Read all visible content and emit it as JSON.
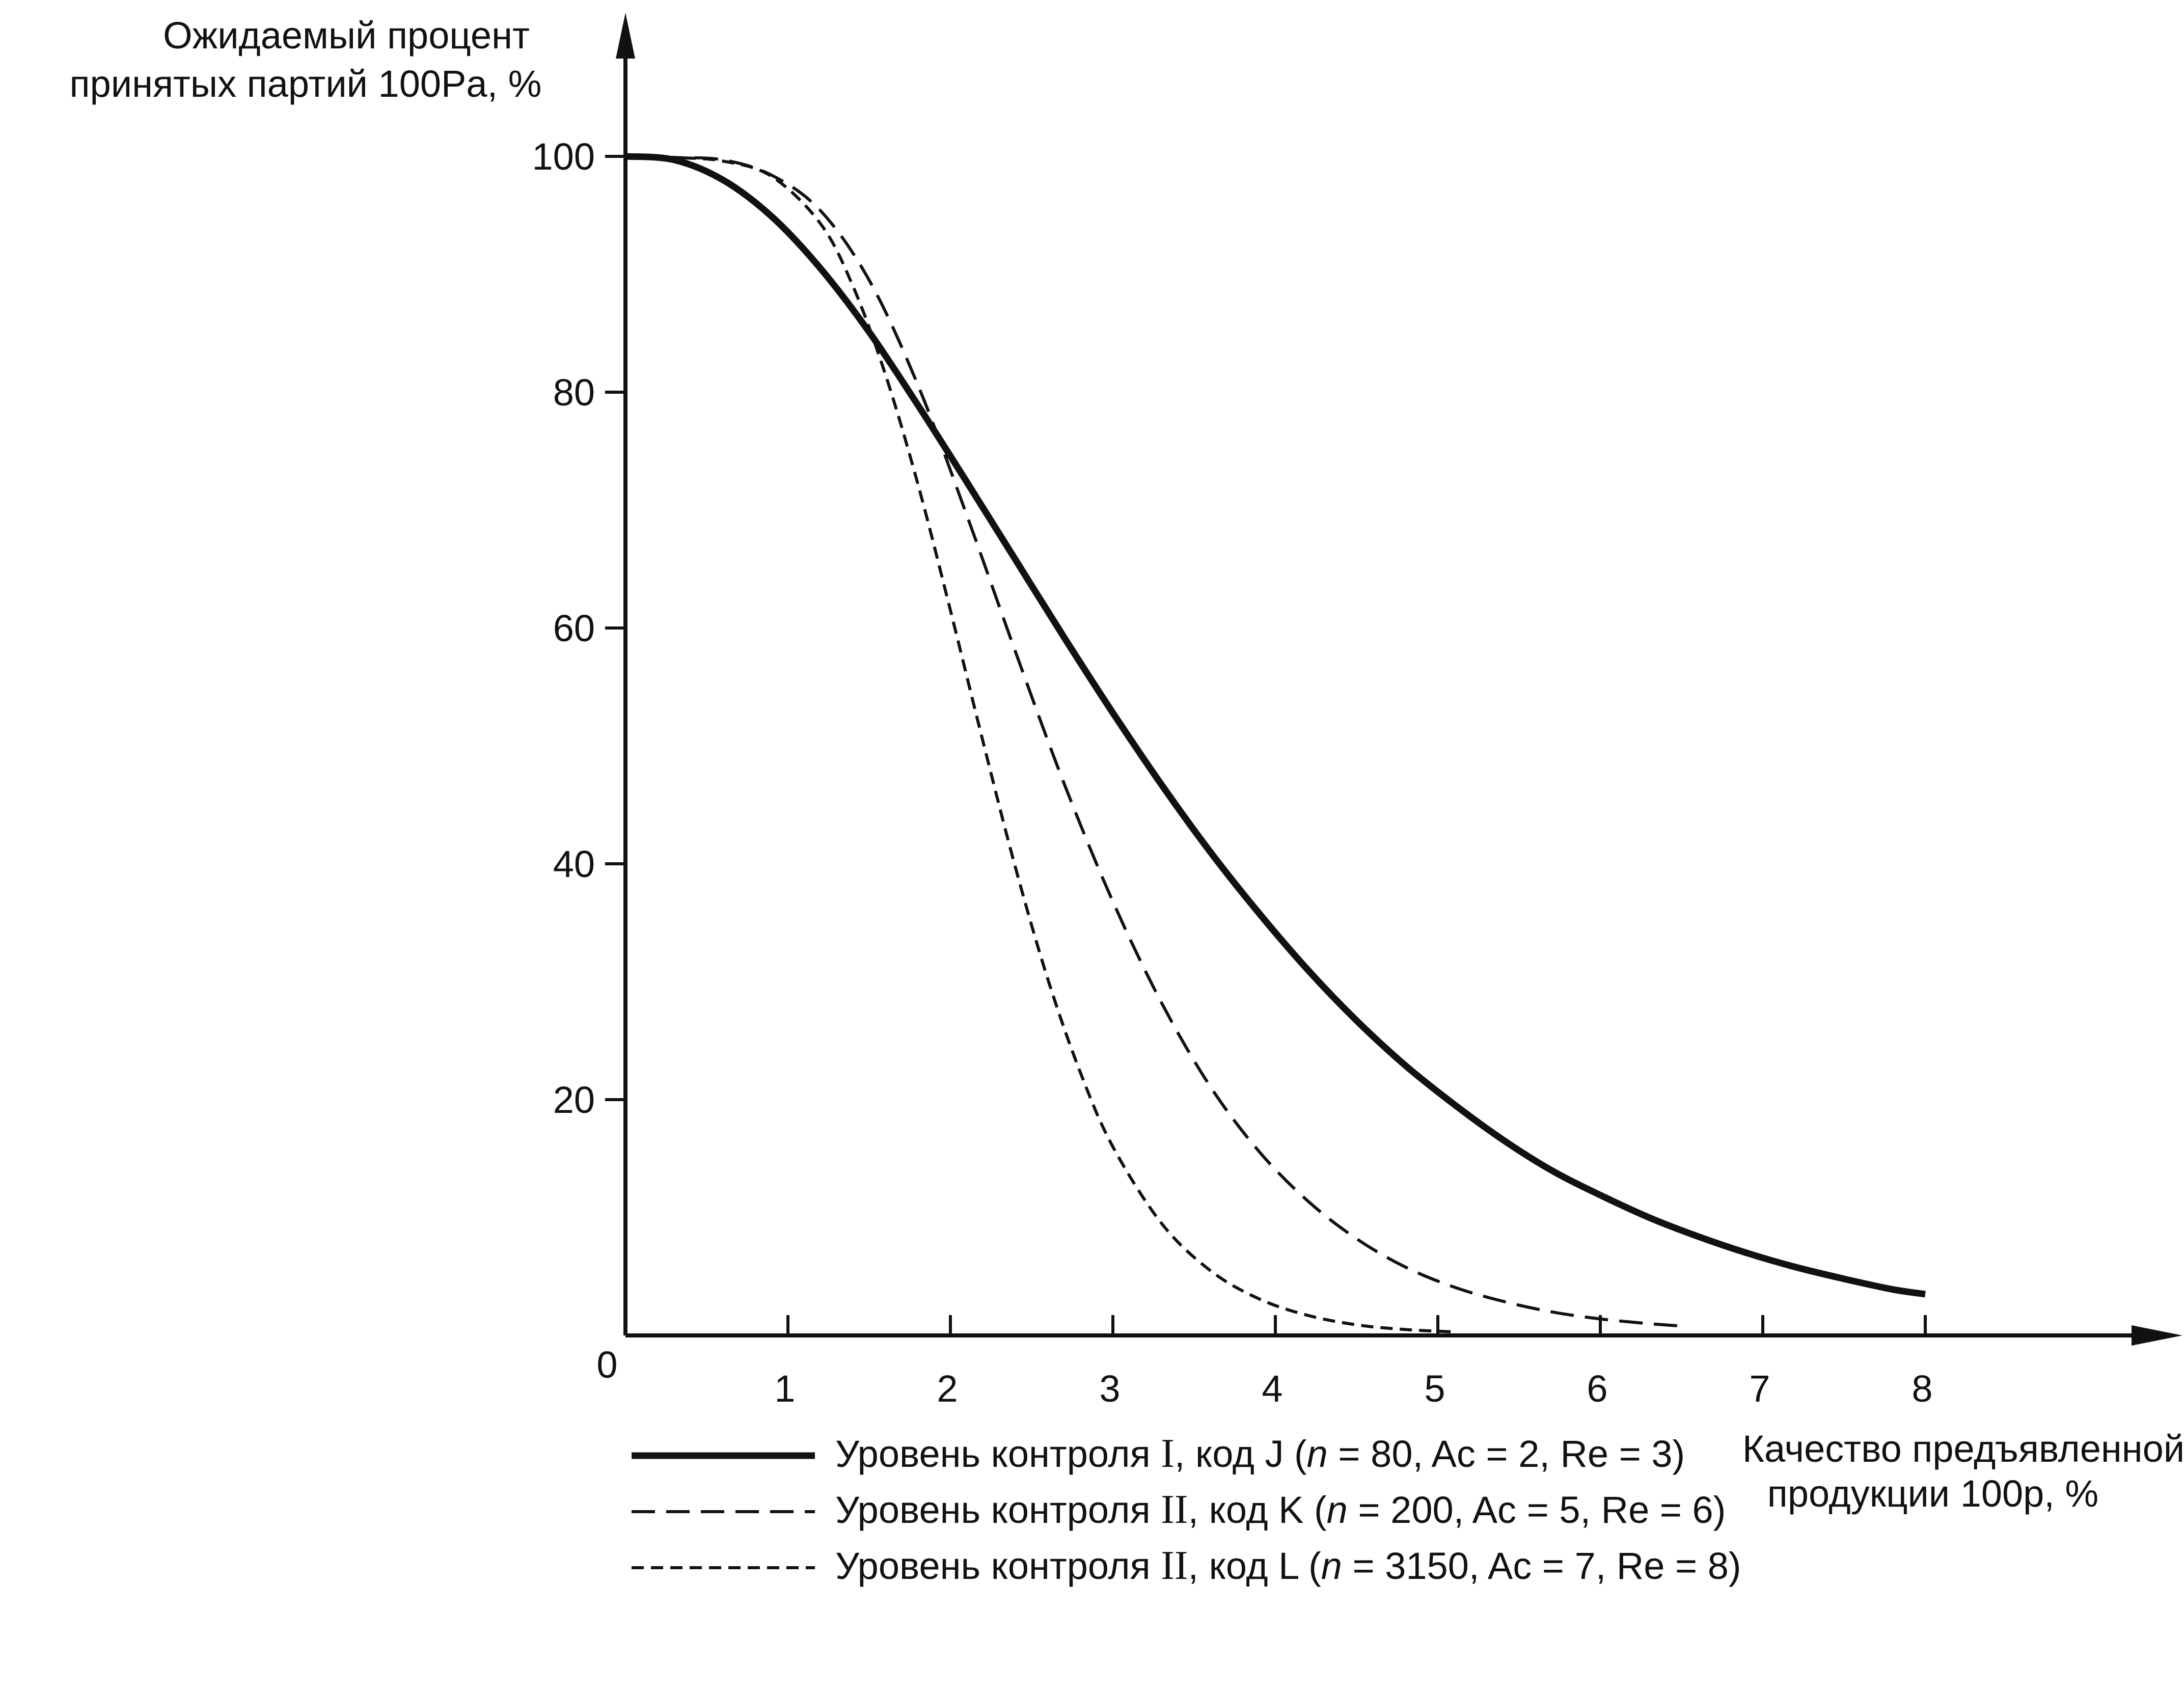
{
  "chart_data": {
    "type": "line",
    "title": "",
    "ylabel": [
      "Ожидаемый процент",
      "принятых партий 100Pa, %"
    ],
    "xlabel": [
      "Качество предъявленной",
      "продукции 100p, %"
    ],
    "origin_label": "0",
    "xlim": [
      0,
      8.5
    ],
    "ylim": [
      0,
      100
    ],
    "xticks": [
      "1",
      "2",
      "3",
      "4",
      "5",
      "6",
      "7",
      "8"
    ],
    "yticks": [
      "20",
      "40",
      "60",
      "80",
      "100"
    ],
    "grid": false,
    "legend_position": "bottom",
    "series": [
      {
        "name": "Уровень контроля I, код J (n = 80, Ac = 2, Re = 3)",
        "style": "solid-thick",
        "legend_parts": [
          "Уровень контроля ",
          "I",
          ", код ",
          "J",
          " (",
          "n",
          " = 80, Ac = 2, Re = 3)"
        ],
        "x": [
          0,
          0.3,
          0.6,
          0.9,
          1.2,
          1.5,
          1.8,
          2.1,
          2.4,
          2.7,
          3.0,
          3.3,
          3.6,
          3.9,
          4.2,
          4.5,
          4.8,
          5.1,
          5.4,
          5.7,
          6.0,
          6.3,
          6.6,
          6.9,
          7.2,
          7.5,
          7.8,
          8.0
        ],
        "y": [
          100,
          99.7,
          98.0,
          94.9,
          90.5,
          85.1,
          78.9,
          72.4,
          65.8,
          59.2,
          52.8,
          46.7,
          41.0,
          35.8,
          31.0,
          26.7,
          22.9,
          19.6,
          16.6,
          14.0,
          11.9,
          10.0,
          8.4,
          7.0,
          5.8,
          4.8,
          3.9,
          3.5
        ]
      },
      {
        "name": "Уровень контроля II, код K (n = 200, Ac = 5, Re = 6)",
        "style": "dashed-long",
        "legend_parts": [
          "Уровень контроля ",
          "II",
          ", код ",
          "K",
          " (",
          "n",
          " = 200, Ac = 5, Re = 6)"
        ],
        "x": [
          0,
          0.3,
          0.6,
          0.9,
          1.2,
          1.5,
          1.8,
          2.1,
          2.4,
          2.7,
          3.0,
          3.3,
          3.6,
          3.9,
          4.2,
          4.5,
          4.8,
          5.1,
          5.4,
          5.7,
          6.0,
          6.3,
          6.5
        ],
        "y": [
          100,
          99.9,
          99.7,
          98.4,
          95.4,
          89.5,
          80.6,
          69.6,
          58.0,
          46.8,
          36.8,
          28.2,
          21.1,
          15.6,
          11.4,
          8.2,
          5.8,
          4.1,
          2.9,
          2.0,
          1.4,
          1.0,
          0.8
        ]
      },
      {
        "name": "Уровень контроля II, код L (n = 3150, Ac = 7, Re = 8)",
        "style": "dashed-short",
        "legend_parts": [
          "Уровень контроля ",
          "II",
          ", код ",
          "L",
          " (",
          "n",
          " = 3150, Ac = 7, Re = 8)"
        ],
        "x": [
          0,
          0.3,
          0.6,
          0.9,
          1.2,
          1.4,
          1.6,
          1.8,
          2.0,
          2.2,
          2.4,
          2.6,
          2.8,
          3.0,
          3.3,
          3.6,
          3.9,
          4.2,
          4.5,
          4.8,
          5.1
        ],
        "y": [
          100,
          99.9,
          99.6,
          98.3,
          94.3,
          89.0,
          81.5,
          72.2,
          61.5,
          50.4,
          39.7,
          30.2,
          22.3,
          16.0,
          9.5,
          5.5,
          3.1,
          1.7,
          0.9,
          0.5,
          0.3
        ]
      }
    ]
  }
}
